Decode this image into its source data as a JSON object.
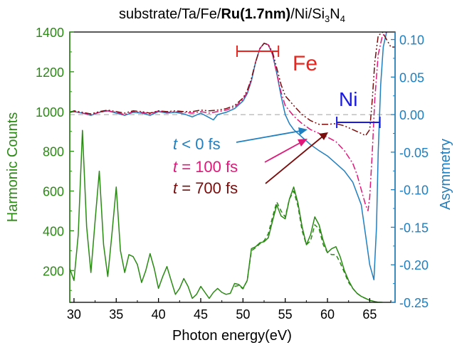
{
  "chart_data": {
    "type": "line",
    "title": {
      "prefix": "substrate/Ta/Fe/",
      "bold": "Ru(1.7nm)",
      "mid": "/Ni/Si",
      "sub1": "3",
      "n": "N",
      "sub2": "4"
    },
    "xlabel": "Photon energy(eV)",
    "ylabel_left": "Harmonic Counts",
    "ylabel_right": "Asymmetry",
    "xlim": [
      29.5,
      68
    ],
    "ylim_left": [
      40,
      1400
    ],
    "ylim_right": [
      -0.25,
      0.11
    ],
    "xticks": [
      "30",
      "35",
      "40",
      "45",
      "50",
      "55",
      "60",
      "65"
    ],
    "yticks_left": [
      "200",
      "400",
      "600",
      "800",
      "1000",
      "1200",
      "1400"
    ],
    "yticks_right": [
      "-0.25",
      "-0.20",
      "-0.15",
      "-0.10",
      "-0.05",
      "0.00",
      "0.05",
      "0.10"
    ],
    "colors": {
      "left_axis": "#2a8a14",
      "right_axis": "#1f7fc0",
      "t_neg": "#1f7fc0",
      "t_100": "#e0187a",
      "t_700": "#7a0c0c",
      "fe": "#e8251e",
      "ni": "#1a1ae0",
      "zero_line": "#b4b4b4"
    },
    "annotations": {
      "fe_label": "Fe",
      "fe_range": [
        49.3,
        54.2
      ],
      "ni_label": "Ni",
      "ni_range": [
        61.1,
        66.2
      ]
    },
    "legend": [
      {
        "symbol": "t",
        "text": " < 0 fs",
        "color": "#1f7fc0"
      },
      {
        "symbol": "t",
        "text": " = 100 fs",
        "color": "#e0187a"
      },
      {
        "symbol": "t",
        "text": " = 700 fs",
        "color": "#7a0c0c"
      }
    ],
    "series": [
      {
        "axis": "left",
        "style": "solid",
        "color": "#2a8a14",
        "x": [
          29.5,
          30.0,
          30.5,
          31.0,
          31.5,
          32.0,
          32.5,
          33.0,
          33.5,
          34.0,
          34.5,
          35.0,
          35.5,
          36.0,
          36.5,
          37.0,
          37.5,
          38.0,
          38.5,
          39.0,
          39.5,
          40.0,
          40.5,
          41.0,
          41.5,
          42.0,
          42.5,
          43.0,
          43.5,
          44.0,
          44.5,
          45.0,
          45.5,
          46.0,
          46.5,
          47.0,
          47.5,
          48.0,
          48.5,
          49.0,
          49.5,
          50.0,
          50.5,
          51.0,
          51.5,
          52.0,
          52.5,
          53.0,
          53.5,
          54.0,
          54.5,
          55.0,
          55.5,
          56.0,
          56.5,
          57.0,
          57.5,
          58.0,
          58.5,
          59.0,
          59.5,
          60.0,
          60.5,
          61.0,
          61.5,
          62.0,
          62.5,
          63.0,
          63.5,
          64.0,
          64.5,
          65.0,
          65.5,
          66.0,
          66.5
        ],
        "y": [
          210,
          150,
          380,
          905,
          420,
          190,
          450,
          700,
          330,
          170,
          390,
          620,
          300,
          190,
          280,
          270,
          230,
          140,
          200,
          285,
          210,
          110,
          170,
          220,
          150,
          80,
          110,
          160,
          120,
          60,
          80,
          120,
          90,
          60,
          90,
          110,
          90,
          80,
          85,
          135,
          130,
          110,
          150,
          310,
          320,
          340,
          345,
          365,
          450,
          530,
          475,
          460,
          560,
          620,
          540,
          420,
          330,
          380,
          470,
          430,
          350,
          290,
          310,
          320,
          270,
          200,
          150,
          110,
          85,
          70,
          60,
          50,
          45,
          40,
          40
        ]
      },
      {
        "axis": "left",
        "style": "dashed",
        "color": "#2a8a14",
        "x": [
          49.0,
          49.5,
          50.0,
          50.5,
          51.0,
          51.5,
          52.0,
          52.5,
          53.0,
          53.5,
          54.0,
          54.5,
          55.0,
          55.5,
          56.0,
          56.5,
          57.0,
          57.5,
          58.0,
          58.5,
          59.0,
          59.5,
          60.0,
          60.5,
          61.0,
          61.5,
          62.0,
          62.5,
          63.0,
          63.5,
          64.0,
          64.5,
          65.0,
          65.5,
          66.0,
          66.5
        ],
        "y": [
          120,
          125,
          108,
          150,
          300,
          315,
          335,
          350,
          385,
          470,
          545,
          500,
          470,
          560,
          600,
          525,
          400,
          330,
          350,
          430,
          410,
          330,
          290,
          280,
          280,
          240,
          190,
          140,
          110,
          85,
          70,
          60,
          50,
          45,
          40,
          40
        ]
      },
      {
        "axis": "right",
        "style": "solid",
        "color": "#1f7fc0",
        "x": [
          29.5,
          30,
          31,
          32,
          33,
          34,
          35,
          36,
          37,
          38,
          39,
          40,
          41,
          42,
          43,
          44,
          45,
          46,
          46.5,
          47,
          48,
          49,
          50,
          50.5,
          51,
          51.5,
          52,
          52.5,
          53,
          53.5,
          54,
          54.5,
          55,
          55.5,
          56,
          57,
          58,
          59,
          60,
          61,
          62,
          63,
          64,
          64.5,
          65,
          65.5,
          65.8,
          66,
          66.3,
          66.6,
          67
        ],
        "y": [
          0.003,
          0.004,
          0.002,
          -0.001,
          0.003,
          0.005,
          0.002,
          -0.001,
          0.003,
          0.002,
          -0.001,
          0.004,
          0.002,
          0.003,
          0.001,
          -0.003,
          0.002,
          -0.004,
          -0.007,
          0.0,
          0.003,
          0.008,
          0.018,
          0.028,
          0.045,
          0.07,
          0.088,
          0.095,
          0.093,
          0.08,
          0.055,
          0.025,
          0.0,
          -0.012,
          -0.02,
          -0.03,
          -0.04,
          -0.048,
          -0.055,
          -0.065,
          -0.075,
          -0.09,
          -0.12,
          -0.16,
          -0.2,
          -0.22,
          -0.15,
          -0.05,
          0.04,
          0.09,
          0.11
        ]
      },
      {
        "axis": "right",
        "style": "dashdot",
        "color": "#e0187a",
        "x": [
          29.5,
          30,
          31,
          32,
          33,
          34,
          35,
          36,
          37,
          38,
          39,
          40,
          41,
          42,
          43,
          44,
          45,
          46,
          47,
          48,
          49,
          50,
          50.5,
          51,
          51.5,
          52,
          52.5,
          53,
          53.5,
          54,
          54.5,
          55,
          56,
          57,
          58,
          59,
          60,
          61,
          62,
          63,
          63.5,
          64,
          64.5,
          64.8,
          65,
          65.3,
          65.6,
          66,
          66.5,
          67
        ],
        "y": [
          0.003,
          0.004,
          0.002,
          0.0,
          0.003,
          0.005,
          0.003,
          0.0,
          0.004,
          0.003,
          0.001,
          0.005,
          0.003,
          0.004,
          0.003,
          0.002,
          0.004,
          0.002,
          0.004,
          0.006,
          0.01,
          0.02,
          0.03,
          0.047,
          0.07,
          0.088,
          0.095,
          0.093,
          0.08,
          0.055,
          0.03,
          0.012,
          -0.002,
          -0.012,
          -0.02,
          -0.025,
          -0.03,
          -0.036,
          -0.048,
          -0.065,
          -0.08,
          -0.1,
          -0.12,
          -0.128,
          -0.11,
          -0.05,
          0.02,
          0.08,
          0.105,
          0.11
        ]
      },
      {
        "axis": "right",
        "style": "dashdotdot",
        "color": "#7a0c0c",
        "x": [
          29.5,
          30,
          31,
          32,
          33,
          34,
          35,
          36,
          37,
          38,
          39,
          40,
          41,
          42,
          43,
          44,
          45,
          46,
          47,
          48,
          49,
          50,
          50.5,
          51,
          51.5,
          52,
          52.5,
          53,
          53.5,
          54,
          54.5,
          55,
          56,
          57,
          58,
          59,
          60,
          61,
          62,
          63,
          64,
          64.5,
          65,
          65.3,
          65.6,
          66,
          66.5,
          67,
          67.5,
          68
        ],
        "y": [
          0.003,
          0.005,
          0.003,
          0.001,
          0.004,
          0.006,
          0.004,
          0.002,
          0.005,
          0.004,
          0.002,
          0.005,
          0.004,
          0.005,
          0.004,
          0.004,
          0.006,
          0.005,
          0.006,
          0.008,
          0.012,
          0.022,
          0.032,
          0.048,
          0.07,
          0.088,
          0.095,
          0.093,
          0.083,
          0.062,
          0.04,
          0.025,
          0.012,
          0.0,
          -0.008,
          -0.013,
          -0.013,
          -0.012,
          -0.015,
          -0.02,
          -0.025,
          -0.028,
          -0.02,
          0.02,
          0.07,
          0.105,
          0.11,
          0.1,
          0.09,
          0.09
        ]
      }
    ]
  }
}
